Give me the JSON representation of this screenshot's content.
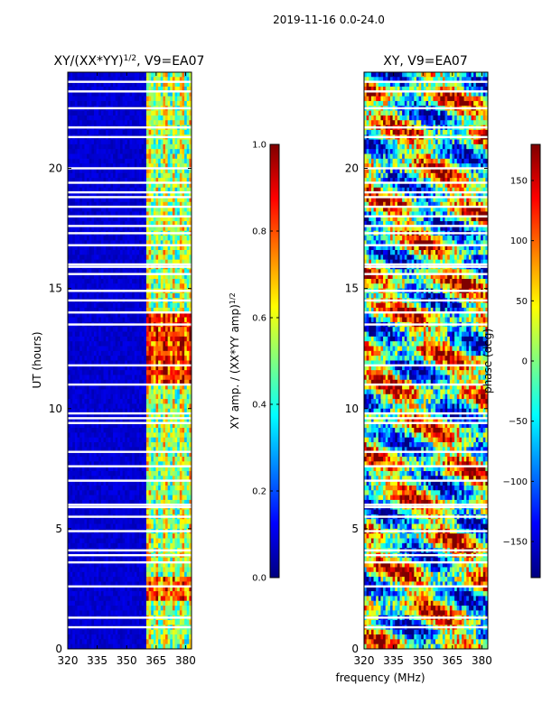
{
  "header": {
    "title": "2019-11-16 0.0-24.0"
  },
  "shared_x_label": "frequency (MHz)",
  "colormap": {
    "name": "jet",
    "stops": [
      "#00007f",
      "#0000ff",
      "#0080ff",
      "#00ffff",
      "#80ff80",
      "#ffff00",
      "#ff8000",
      "#ff0000",
      "#7f0000"
    ]
  },
  "chart_data": [
    {
      "type": "heatmap",
      "title": "XY/(XX*YY)^1/2, V9=EA07",
      "title_main": "XY/(XX*YY)",
      "title_sup": "1/2",
      "title_tail": ", V9=EA07",
      "xlabel": "frequency (MHz)",
      "ylabel": "UT (hours)",
      "xlim": [
        320,
        383
      ],
      "ylim": [
        0,
        24
      ],
      "xticks": [
        320,
        335,
        350,
        365,
        380
      ],
      "yticks": [
        0,
        5,
        10,
        15,
        20
      ],
      "colorbar": {
        "label": "XY amp. / (XX*YY amp)^1/2",
        "label_main": "XY amp. / (XX*YY amp)",
        "label_sup": "1/2",
        "range": [
          0.0,
          1.0
        ],
        "ticks": [
          "0.0",
          "0.2",
          "0.4",
          "0.6",
          "0.8",
          "1.0"
        ]
      },
      "description": "Mostly low amplitude (~0.05) below 360 MHz; elevated amplitude (~0.4-0.9) in channels 360-383 MHz, highest near 11-14 UT and 2-3 UT.",
      "blank_hours": [
        0.9,
        1.3,
        2.6,
        3.6,
        3.9,
        4.1,
        4.9,
        5.5,
        5.9,
        6.0,
        7.0,
        7.6,
        8.2,
        9.4,
        9.6,
        9.8,
        11.0,
        11.8,
        13.5,
        14.0,
        14.5,
        14.9,
        15.6,
        15.9,
        16.0,
        16.8,
        17.3,
        17.6,
        18.0,
        18.4,
        18.8,
        19.0,
        19.4,
        20.0,
        21.3,
        21.7,
        22.5,
        23.2,
        23.6
      ]
    },
    {
      "type": "heatmap",
      "title": "XY, V9=EA07",
      "xlabel": "frequency (MHz)",
      "ylabel": "",
      "xlim": [
        320,
        383
      ],
      "ylim": [
        0,
        24
      ],
      "xticks": [
        320,
        335,
        350,
        365,
        380
      ],
      "yticks": [
        0,
        5,
        10,
        15,
        20
      ],
      "colorbar": {
        "label": "phase (deg)",
        "range": [
          -180,
          180
        ],
        "ticks": [
          "−150",
          "−100",
          "−50",
          "0",
          "50",
          "100",
          "150"
        ],
        "tick_values": [
          -150,
          -100,
          -50,
          0,
          50,
          100,
          150
        ]
      },
      "description": "Noisy phase values spanning -180 to 180 degrees across all frequencies and times.",
      "blank_hours": [
        0.9,
        1.3,
        2.6,
        3.6,
        3.9,
        4.1,
        4.9,
        5.5,
        5.9,
        6.0,
        7.0,
        7.6,
        8.2,
        9.4,
        9.6,
        9.8,
        11.0,
        11.8,
        13.5,
        14.0,
        14.5,
        14.9,
        15.6,
        15.9,
        16.0,
        16.8,
        17.3,
        17.6,
        18.0,
        18.4,
        18.8,
        19.0,
        19.4,
        20.0,
        21.3,
        21.7,
        22.5,
        23.2,
        23.6
      ]
    }
  ]
}
